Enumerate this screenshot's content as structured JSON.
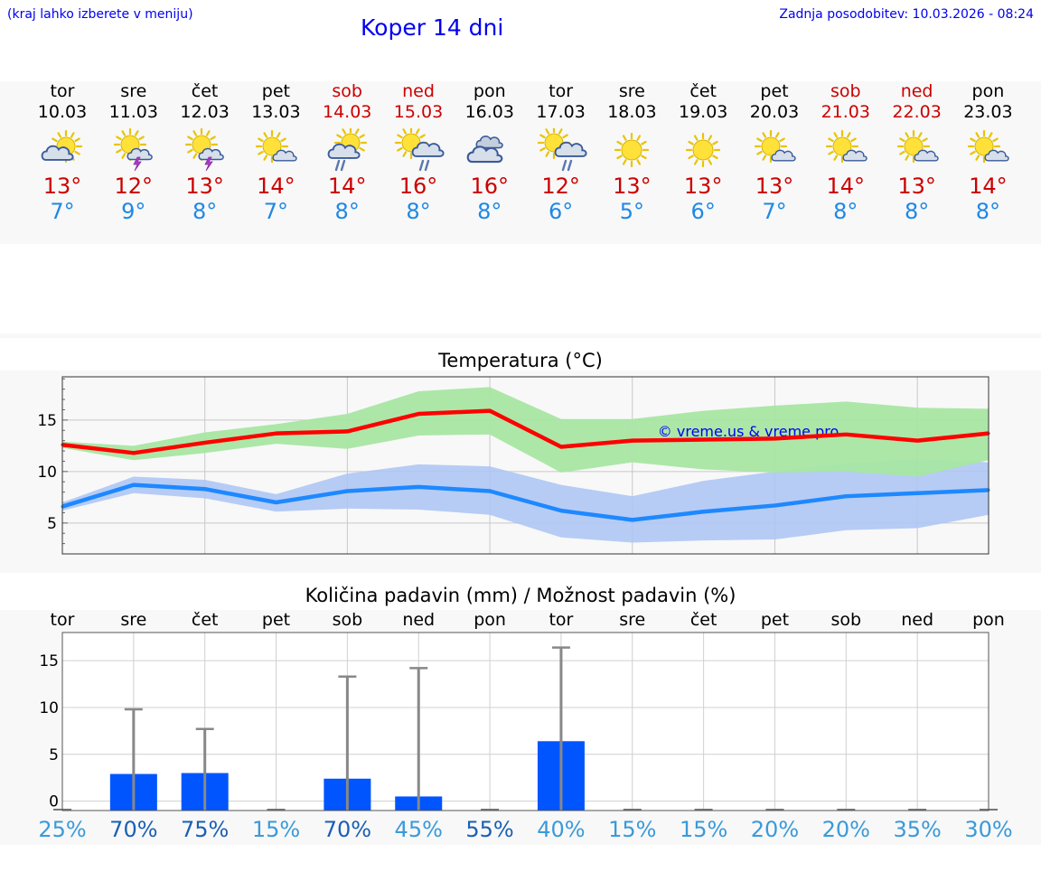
{
  "header": {
    "menu_hint": "(kraj lahko izberete v meniju)",
    "title": "Koper 14 dni",
    "last_update": "Zadnja posodobitev: 10.03.2026 - 08:24"
  },
  "colors": {
    "link": "#0000ee",
    "weekend": "#cc0000",
    "tmax": "#cc0000",
    "tmin": "#1e88e5",
    "tmax_line": "#ff0000",
    "tmax_band": "#a8e6a3",
    "tmin_line": "#1e88ff",
    "tmin_band": "#aac4f5",
    "rain_bar": "#0055ff",
    "prob_high": "#1a5fb4",
    "prob_low": "#3a9ad9"
  },
  "days": [
    {
      "name": "tor",
      "date": "10.03",
      "tmax": "13°",
      "tmin": "7°",
      "weekend": false,
      "icon": "sun-cloud-icon"
    },
    {
      "name": "sre",
      "date": "11.03",
      "tmax": "12°",
      "tmin": "9°",
      "weekend": false,
      "icon": "sun-thunder-icon"
    },
    {
      "name": "čet",
      "date": "12.03",
      "tmax": "13°",
      "tmin": "8°",
      "weekend": false,
      "icon": "sun-thunder-icon"
    },
    {
      "name": "pet",
      "date": "13.03",
      "tmax": "14°",
      "tmin": "7°",
      "weekend": false,
      "icon": "sun-small-cloud-icon"
    },
    {
      "name": "sob",
      "date": "14.03",
      "tmax": "14°",
      "tmin": "8°",
      "weekend": true,
      "icon": "sun-rain-icon"
    },
    {
      "name": "ned",
      "date": "15.03",
      "tmax": "16°",
      "tmin": "8°",
      "weekend": true,
      "icon": "sun-cloud-rain-icon"
    },
    {
      "name": "pon",
      "date": "16.03",
      "tmax": "16°",
      "tmin": "8°",
      "weekend": false,
      "icon": "cloudy-icon"
    },
    {
      "name": "tor",
      "date": "17.03",
      "tmax": "12°",
      "tmin": "6°",
      "weekend": false,
      "icon": "sun-cloud-rain-icon"
    },
    {
      "name": "sre",
      "date": "18.03",
      "tmax": "13°",
      "tmin": "5°",
      "weekend": false,
      "icon": "sun-icon"
    },
    {
      "name": "čet",
      "date": "19.03",
      "tmax": "13°",
      "tmin": "6°",
      "weekend": false,
      "icon": "sun-icon"
    },
    {
      "name": "pet",
      "date": "20.03",
      "tmax": "13°",
      "tmin": "7°",
      "weekend": false,
      "icon": "sun-small-cloud-icon"
    },
    {
      "name": "sob",
      "date": "21.03",
      "tmax": "14°",
      "tmin": "8°",
      "weekend": true,
      "icon": "sun-small-cloud-icon"
    },
    {
      "name": "ned",
      "date": "22.03",
      "tmax": "13°",
      "tmin": "8°",
      "weekend": true,
      "icon": "sun-small-cloud-icon"
    },
    {
      "name": "pon",
      "date": "23.03",
      "tmax": "14°",
      "tmin": "8°",
      "weekend": false,
      "icon": "sun-small-cloud-icon"
    }
  ],
  "chart_data": [
    {
      "type": "line",
      "title": "Temperatura (°C)",
      "watermark": "© vreme.us & vreme.pro",
      "x": [
        0,
        1,
        2,
        3,
        4,
        5,
        6,
        7,
        8,
        9,
        10,
        11,
        12,
        13
      ],
      "ylim": [
        2,
        19.2
      ],
      "yticks": [
        5,
        10,
        15
      ],
      "grid": true,
      "series": [
        {
          "name": "tmax",
          "values": [
            12.6,
            11.8,
            12.8,
            13.7,
            13.9,
            15.6,
            15.9,
            12.4,
            13.0,
            13.1,
            13.2,
            13.6,
            13.0,
            13.7
          ],
          "band_low": [
            12.3,
            11.1,
            11.8,
            12.7,
            12.2,
            13.5,
            13.6,
            9.9,
            10.9,
            10.2,
            9.9,
            10.0,
            9.5,
            11.1
          ],
          "band_high": [
            12.9,
            12.5,
            13.8,
            14.6,
            15.6,
            17.8,
            18.2,
            15.1,
            15.1,
            15.9,
            16.4,
            16.8,
            16.2,
            16.1
          ]
        },
        {
          "name": "tmin",
          "values": [
            6.6,
            8.7,
            8.3,
            7.0,
            8.1,
            8.5,
            8.1,
            6.2,
            5.3,
            6.1,
            6.7,
            7.6,
            7.9,
            8.2
          ],
          "band_low": [
            6.2,
            7.9,
            7.4,
            6.1,
            6.4,
            6.3,
            5.8,
            3.6,
            3.1,
            3.3,
            3.4,
            4.3,
            4.5,
            5.8
          ],
          "band_high": [
            7.0,
            9.5,
            9.2,
            7.8,
            9.8,
            10.7,
            10.5,
            8.7,
            7.6,
            9.1,
            10.0,
            10.8,
            11.2,
            10.9
          ]
        }
      ]
    },
    {
      "type": "bar",
      "title": "Količina padavin (mm) / Možnost padavin (%)",
      "categories": [
        "tor",
        "sre",
        "čet",
        "pet",
        "sob",
        "ned",
        "pon",
        "tor",
        "sre",
        "čet",
        "pet",
        "sob",
        "ned",
        "pon"
      ],
      "values": [
        0,
        2.9,
        3.0,
        0,
        2.4,
        0.5,
        0,
        6.4,
        0,
        0,
        0,
        0,
        0,
        0
      ],
      "error_high": [
        0,
        9.8,
        7.7,
        0,
        13.3,
        14.2,
        0,
        16.4,
        0,
        0,
        0,
        0,
        0,
        0
      ],
      "ylim": [
        -1,
        18
      ],
      "yticks": [
        0,
        5,
        10,
        15
      ],
      "probability": [
        "25%",
        "70%",
        "75%",
        "15%",
        "70%",
        "45%",
        "55%",
        "40%",
        "15%",
        "15%",
        "20%",
        "20%",
        "35%",
        "30%"
      ],
      "probability_high": [
        false,
        true,
        true,
        false,
        true,
        false,
        true,
        false,
        false,
        false,
        false,
        false,
        false,
        false
      ]
    }
  ]
}
